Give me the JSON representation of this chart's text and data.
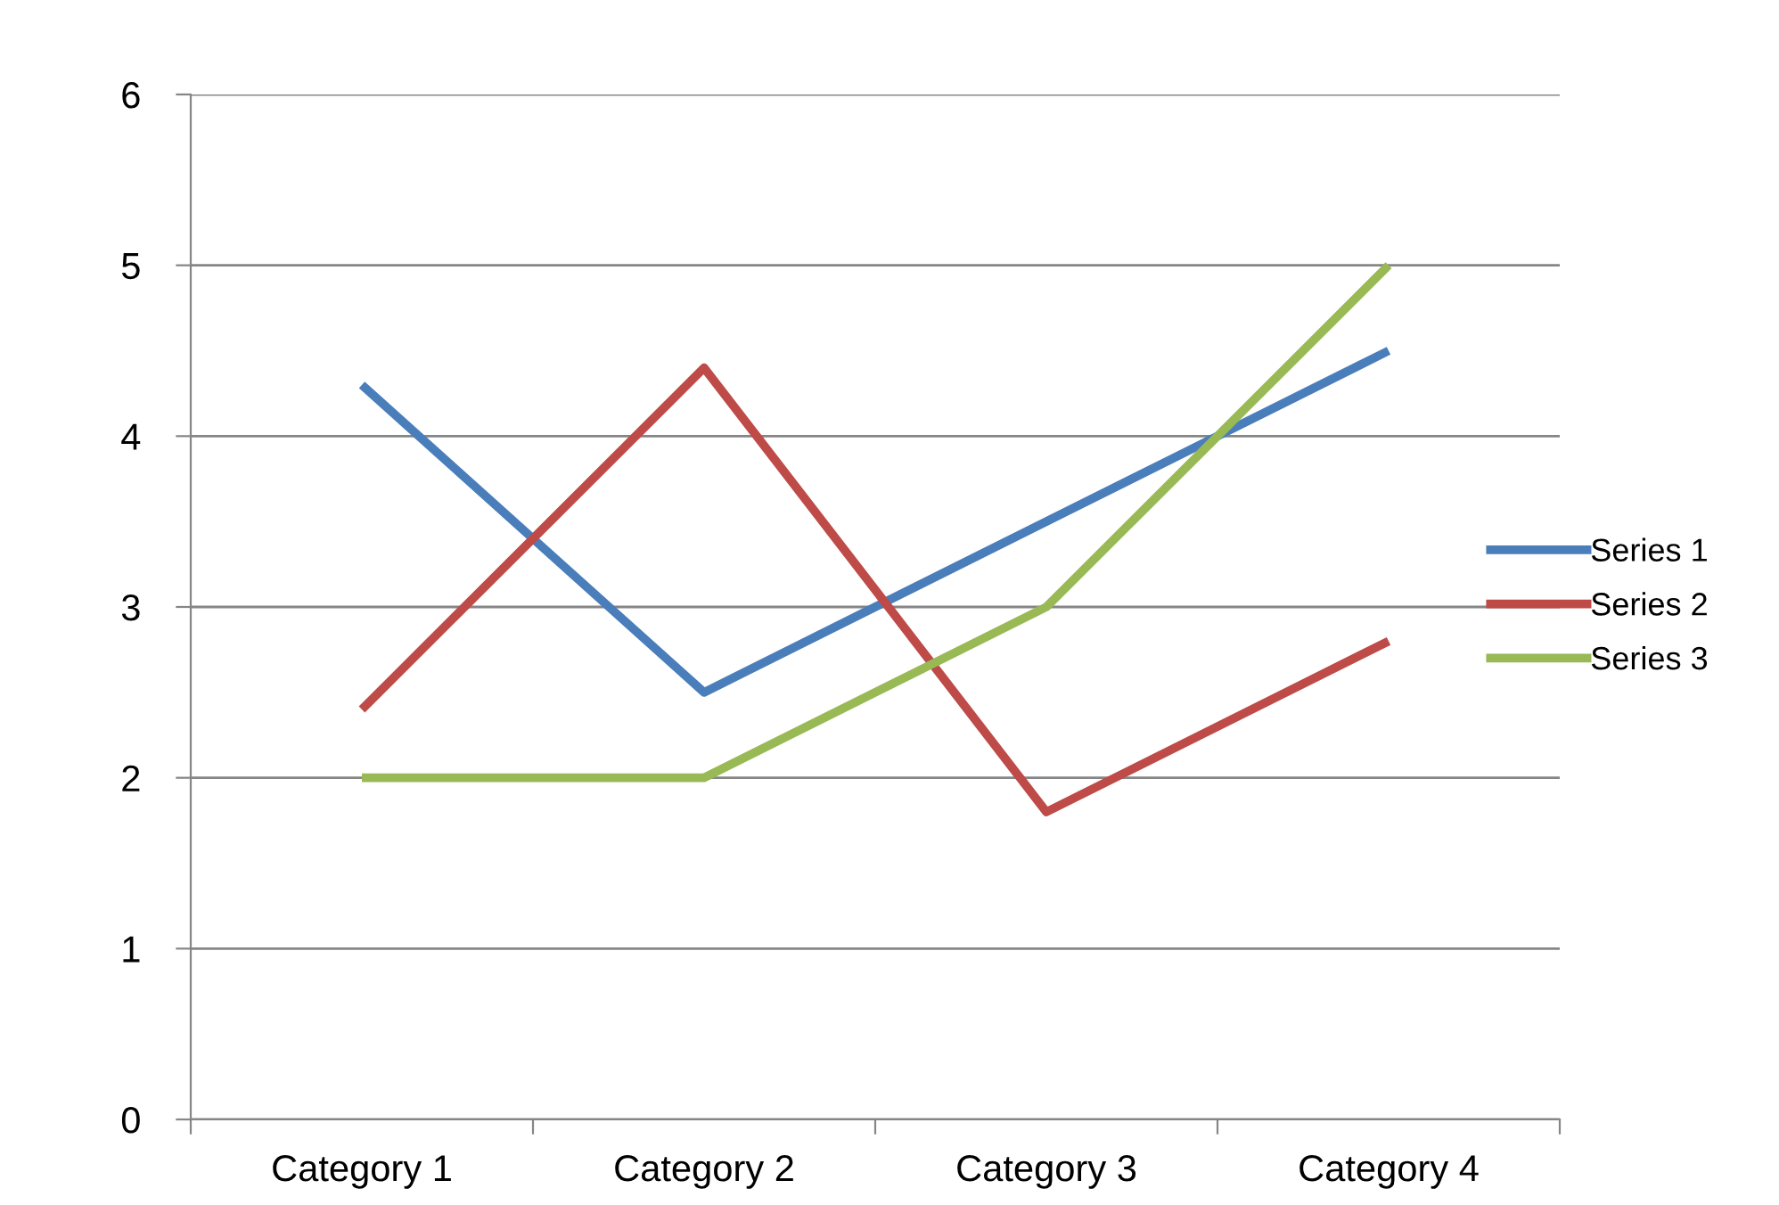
{
  "chart_data": {
    "type": "line",
    "categories": [
      "Category 1",
      "Category 2",
      "Category 3",
      "Category 4"
    ],
    "series": [
      {
        "name": "Series 1",
        "color": "#4a7ebb",
        "values": [
          4.3,
          2.5,
          3.5,
          4.5
        ]
      },
      {
        "name": "Series 2",
        "color": "#be4b48",
        "values": [
          2.4,
          4.4,
          1.8,
          2.8
        ]
      },
      {
        "name": "Series 3",
        "color": "#98b954",
        "values": [
          2,
          2,
          3,
          5
        ]
      }
    ],
    "ylim": [
      0,
      6
    ],
    "yticks": [
      0,
      1,
      2,
      3,
      4,
      5,
      6
    ],
    "grid": "y",
    "legend": "right",
    "marker": "none",
    "line_style": "solid"
  }
}
